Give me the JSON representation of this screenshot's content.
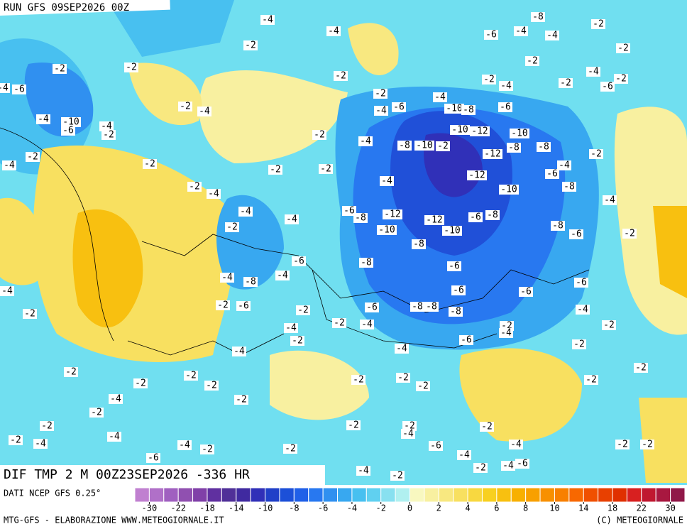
{
  "header": {
    "run": "RUN GFS 09SEP2026 00Z"
  },
  "map": {
    "title": "DIF TMP 2 M 00Z23SEP2026 -336 HR",
    "contour_labels": [
      -4,
      -4,
      -2,
      -8,
      -2,
      -6,
      -4,
      -4,
      -2,
      -2,
      -2,
      -2,
      -2,
      -2,
      -4,
      -2,
      -4,
      -6,
      -2,
      -6,
      -4,
      -2,
      -4,
      -2,
      -4,
      -4,
      -6,
      -10,
      -8,
      -6,
      -4,
      -10,
      -6,
      -4,
      -2,
      -2,
      -10,
      -12,
      -10,
      -4,
      -8,
      -10,
      -2,
      -12,
      -8,
      -8,
      -2,
      -2,
      -4,
      -2,
      -2,
      -2,
      -4,
      -6,
      -12,
      -4,
      -2,
      -4,
      -10,
      -8,
      -4,
      -4,
      -6,
      -8,
      -12,
      -12,
      -6,
      -8,
      -4,
      -2,
      -10,
      -10,
      -8,
      -6,
      -2,
      -8,
      -6,
      -8,
      -6,
      -4,
      -8,
      -4,
      -6,
      -6,
      -4,
      -6,
      -2,
      -6,
      -2,
      -6,
      -8,
      -8,
      -8,
      -4,
      -2,
      -2,
      -4,
      -4,
      -2,
      -4,
      -2,
      -2,
      -6,
      -2,
      -4,
      -4,
      -2,
      -2,
      -2,
      -2,
      -2,
      -2,
      -2,
      -2,
      -2,
      -4,
      -2,
      -2,
      -2,
      -2,
      -2,
      -2,
      -4,
      -4,
      -2,
      -4,
      -6,
      -4,
      -2,
      -2,
      -6,
      -4,
      -4,
      -2,
      -2,
      -2,
      -4,
      -6,
      -4,
      -2
    ]
  },
  "colorbar": {
    "source": "DATI NCEP GFS 0.25°",
    "colors": [
      "#c080d0",
      "#b070c8",
      "#a060c0",
      "#9050b0",
      "#8040a8",
      "#6030a0",
      "#503098",
      "#402aa0",
      "#3030b8",
      "#2040c8",
      "#1c50d8",
      "#2060e8",
      "#2878f0",
      "#3090f0",
      "#38a8f0",
      "#48c0f0",
      "#60d0f0",
      "#88e0f0",
      "#b0f0f0",
      "#f8f8c0",
      "#f8f0a0",
      "#f8e880",
      "#f8e060",
      "#f8d840",
      "#f8d020",
      "#f8c010",
      "#f8b000",
      "#f8a000",
      "#f89000",
      "#f88000",
      "#f86800",
      "#f05000",
      "#e84000",
      "#e03000",
      "#d82020",
      "#c01830",
      "#a81840",
      "#901848"
    ],
    "ticks": [
      -30,
      -22,
      -18,
      -14,
      -10,
      -8,
      -6,
      -4,
      -2,
      0,
      2,
      4,
      6,
      8,
      10,
      14,
      18,
      22,
      30
    ]
  },
  "footer": {
    "left": "MTG-GFS - ELABORAZIONE WWW.METEOGIORNALE.IT",
    "right": "(C) METEOGIORNALE"
  }
}
